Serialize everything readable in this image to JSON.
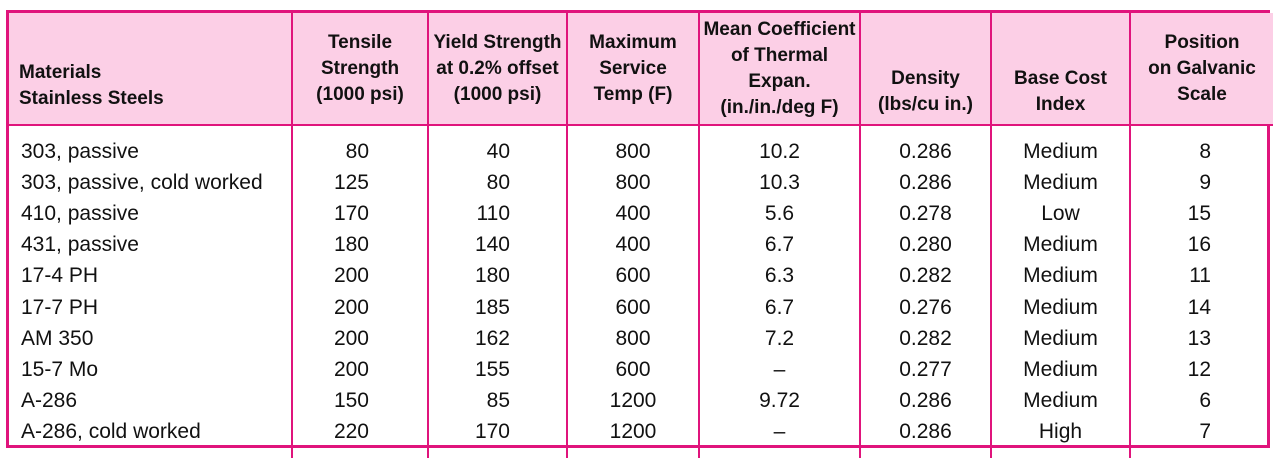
{
  "headers": [
    [
      "Materials",
      "Stainless Steels"
    ],
    [
      "Tensile",
      "Strength",
      "(1000 psi)"
    ],
    [
      "Yield Strength",
      "at 0.2% offset",
      "(1000 psi)"
    ],
    [
      "Maximum",
      "Service",
      "Temp (F)"
    ],
    [
      "Mean Coefficient",
      "of Thermal Expan.",
      "(in./in./deg F)"
    ],
    [
      "Density",
      "(lbs/cu in.)"
    ],
    [
      "Base Cost",
      "Index"
    ],
    [
      "Position",
      "on Galvanic",
      "Scale"
    ]
  ],
  "rows": [
    [
      "303, passive",
      "80",
      "40",
      "800",
      "10.2",
      "0.286",
      "Medium",
      "8"
    ],
    [
      "303, passive, cold worked",
      "125",
      "80",
      "800",
      "10.3",
      "0.286",
      "Medium",
      "9"
    ],
    [
      "410, passive",
      "170",
      "110",
      "400",
      "5.6",
      "0.278",
      "Low",
      "15"
    ],
    [
      "431, passive",
      "180",
      "140",
      "400",
      "6.7",
      "0.280",
      "Medium",
      "16"
    ],
    [
      "17-4  PH",
      "200",
      "180",
      "600",
      "6.3",
      "0.282",
      "Medium",
      "11"
    ],
    [
      "17-7  PH",
      "200",
      "185",
      "600",
      "6.7",
      "0.276",
      "Medium",
      "14"
    ],
    [
      "AM  350",
      "200",
      "162",
      "800",
      "7.2",
      "0.282",
      "Medium",
      "13"
    ],
    [
      "15-7  Mo",
      "200",
      "155",
      "600",
      "–",
      "0.277",
      "Medium",
      "12"
    ],
    [
      "A-286",
      "150",
      "85",
      "1200",
      "9.72",
      "0.286",
      "Medium",
      "6"
    ],
    [
      "A-286, cold worked",
      "220",
      "170",
      "1200",
      "–",
      "0.286",
      "High",
      "7"
    ]
  ],
  "colors": {
    "border": "#e0147c",
    "header_bg": "#fccfe6"
  }
}
